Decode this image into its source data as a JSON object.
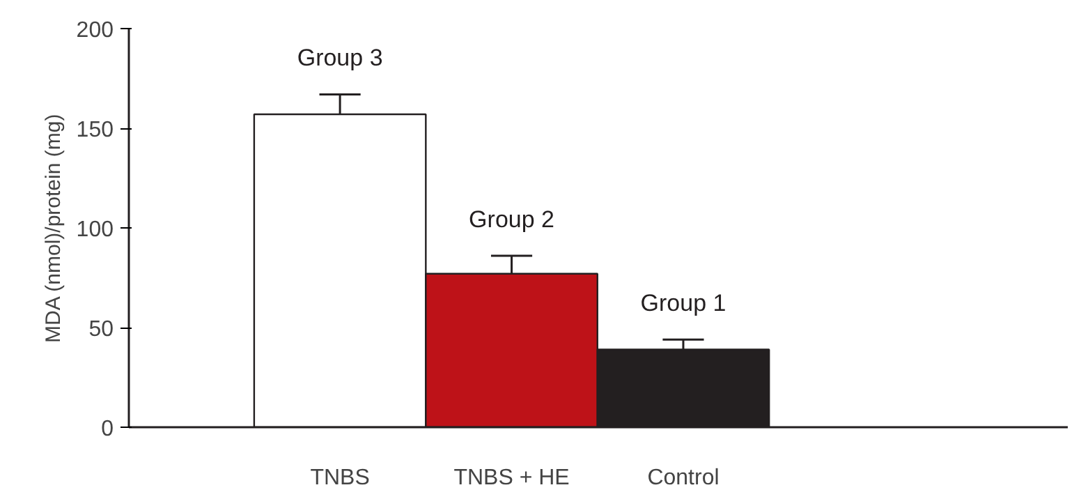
{
  "chart_data": {
    "type": "bar",
    "ylabel": "MDA (nmol)/protein (mg)",
    "categories": [
      "TNBS",
      "TNBS + HE",
      "Control"
    ],
    "values": [
      157,
      77,
      39
    ],
    "colors": [
      "#ffffff",
      "#be1218",
      "#231f20"
    ],
    "errors": [
      [
        157,
        167
      ],
      [
        77,
        86
      ],
      [
        39,
        44
      ]
    ],
    "ylim": [
      0,
      200
    ],
    "yticks": [
      0,
      50,
      100,
      150,
      200
    ],
    "grid": false,
    "annotations": [
      "Group 3",
      "Group 2",
      "Group 1"
    ]
  }
}
